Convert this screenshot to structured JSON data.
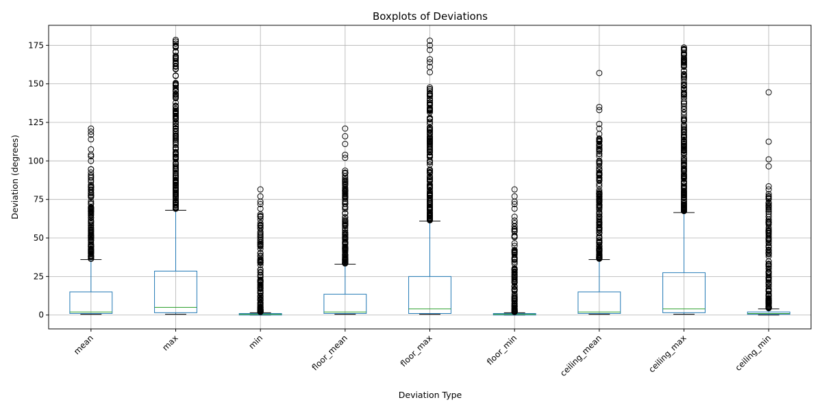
{
  "chart_data": {
    "type": "box",
    "title": "Boxplots of Deviations",
    "xlabel": "Deviation Type",
    "ylabel": "Deviation (degrees)",
    "ylim": [
      -9,
      188
    ],
    "yticks": [
      0,
      25,
      50,
      75,
      100,
      125,
      150,
      175
    ],
    "grid": true,
    "colors": {
      "box": "#1f77b4",
      "median": "#2ca02c",
      "whisker_cap": "#000000",
      "flier": "#000000",
      "grid": "#b0b0b0"
    },
    "categories": [
      "mean",
      "max",
      "min",
      "floor_mean",
      "floor_max",
      "floor_min",
      "ceiling_mean",
      "ceiling_max",
      "ceiling_min"
    ],
    "boxes": [
      {
        "category": "mean",
        "whislo": 0.5,
        "q1": 1.0,
        "med": 2.0,
        "q3": 15.0,
        "whishi": 36.0,
        "flier_range": [
          36.5,
          95
        ],
        "sparse_fliers": [
          100,
          103,
          104,
          107.5,
          114,
          117,
          119,
          121
        ]
      },
      {
        "category": "max",
        "whislo": 0.5,
        "q1": 1.5,
        "med": 5.0,
        "q3": 28.5,
        "whishi": 68.0,
        "flier_range": [
          69,
          179
        ],
        "sparse_fliers": []
      },
      {
        "category": "min",
        "whislo": 0.0,
        "q1": 0.0,
        "med": 0.5,
        "q3": 1.0,
        "whishi": 1.5,
        "flier_range": [
          2,
          66
        ],
        "sparse_fliers": [
          69,
          72,
          73.5,
          77,
          81.5
        ]
      },
      {
        "category": "floor_mean",
        "whislo": 0.5,
        "q1": 1.0,
        "med": 2.0,
        "q3": 13.5,
        "whishi": 33.0,
        "flier_range": [
          33.5,
          96
        ],
        "sparse_fliers": [
          102,
          104,
          111,
          116,
          121
        ]
      },
      {
        "category": "floor_max",
        "whislo": 0.5,
        "q1": 1.0,
        "med": 4.0,
        "q3": 25.0,
        "whishi": 61.0,
        "flier_range": [
          61.5,
          148
        ],
        "sparse_fliers": [
          157.5,
          161,
          164,
          166,
          172,
          175,
          178
        ]
      },
      {
        "category": "floor_min",
        "whislo": 0.0,
        "q1": 0.0,
        "med": 0.5,
        "q3": 1.0,
        "whishi": 1.5,
        "flier_range": [
          2,
          66
        ],
        "sparse_fliers": [
          69,
          72,
          73.5,
          77,
          81.5
        ]
      },
      {
        "category": "ceiling_mean",
        "whislo": 0.5,
        "q1": 1.0,
        "med": 2.0,
        "q3": 15.0,
        "whishi": 36.0,
        "flier_range": [
          36.5,
          118
        ],
        "sparse_fliers": [
          121,
          124,
          133,
          135,
          157
        ]
      },
      {
        "category": "ceiling_max",
        "whislo": 0.5,
        "q1": 1.5,
        "med": 4.0,
        "q3": 27.5,
        "whishi": 66.5,
        "flier_range": [
          67.5,
          179
        ],
        "sparse_fliers": []
      },
      {
        "category": "ceiling_min",
        "whislo": 0.0,
        "q1": 0.5,
        "med": 1.0,
        "q3": 2.0,
        "whishi": 4.0,
        "flier_range": [
          4.5,
          79
        ],
        "sparse_fliers": [
          81.5,
          83.5,
          96.5,
          101,
          112.5,
          144.5
        ]
      }
    ]
  }
}
